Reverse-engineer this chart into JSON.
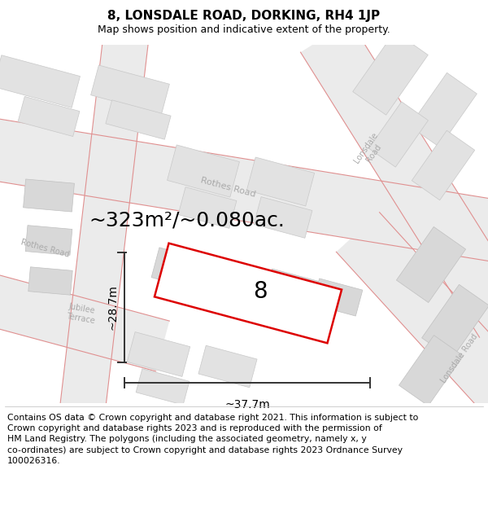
{
  "title": "8, LONSDALE ROAD, DORKING, RH4 1JP",
  "subtitle": "Map shows position and indicative extent of the property.",
  "footer": "Contains OS data © Crown copyright and database right 2021. This information is subject to\nCrown copyright and database rights 2023 and is reproduced with the permission of\nHM Land Registry. The polygons (including the associated geometry, namely x, y\nco-ordinates) are subject to Crown copyright and database rights 2023 Ordnance Survey\n100026316.",
  "area_label": "~323m²/~0.080ac.",
  "width_label": "~37.7m",
  "height_label": "~28.7m",
  "property_number": "8",
  "map_bg": "#f5f5f5",
  "road_fill": "#ebebeb",
  "block_color1": "#e2e2e2",
  "block_color2": "#d8d8d8",
  "road_line_color": "#e09090",
  "property_outline_color": "#dd0000",
  "property_fill": "#ffffff",
  "dimension_line_color": "#333333",
  "title_fontsize": 11,
  "subtitle_fontsize": 9,
  "footer_fontsize": 7.8,
  "area_label_fontsize": 18,
  "dimension_label_fontsize": 10,
  "number_fontsize": 20,
  "road_label_color": "#aaaaaa",
  "road_label_fontsize": 8
}
